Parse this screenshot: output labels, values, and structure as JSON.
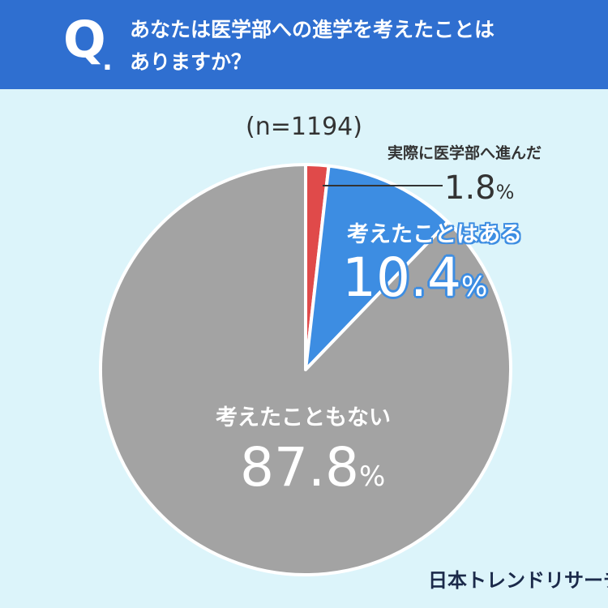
{
  "header": {
    "q_mark": "Q",
    "q_dot": ".",
    "question_line1": "あなたは医学部への進学を考えたことは",
    "question_line2": "ありますか？"
  },
  "sample_size": "(n=1194)",
  "pct_sign": "%",
  "chart_data": {
    "type": "pie",
    "title": "あなたは医学部への進学を考えたことはありますか？",
    "start_angle_deg": 0,
    "direction": "clockwise",
    "slices": [
      {
        "label": "実際に医学部へ進んだ",
        "value": 1.8,
        "value_text": "1.8",
        "color": "#e04a4a"
      },
      {
        "label": "考えたことはある",
        "value": 10.4,
        "value_text": "10.4",
        "color": "#3d8de2"
      },
      {
        "label": "考えたこともない",
        "value": 87.8,
        "value_text": "87.8",
        "color": "#a3a3a3"
      }
    ]
  },
  "brand": "日本トレンドリサーチ"
}
